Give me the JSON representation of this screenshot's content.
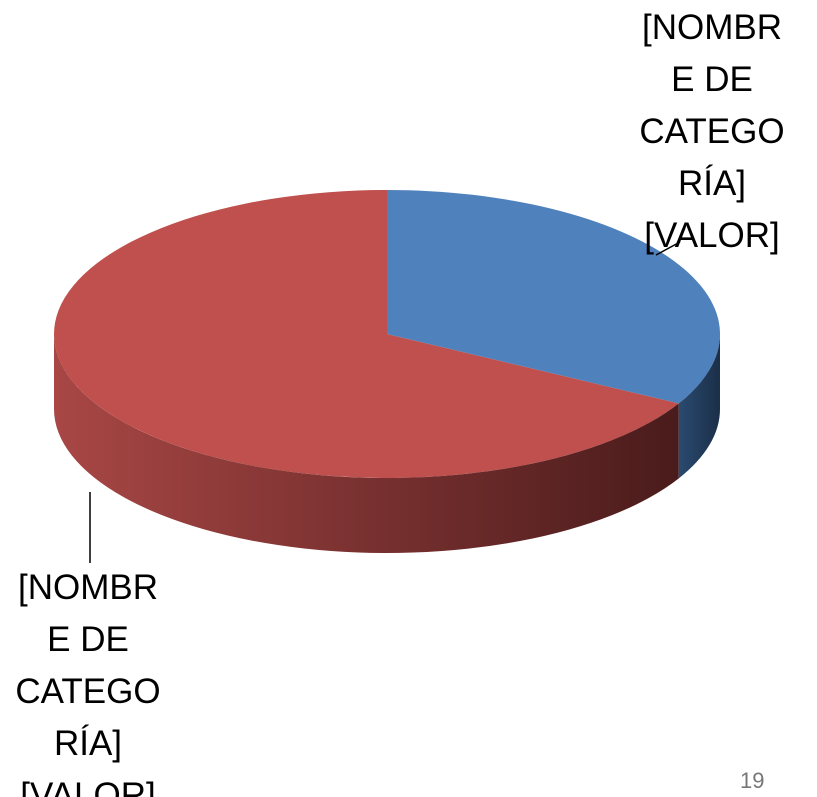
{
  "chart_data": {
    "type": "pie3d",
    "labels": [
      "[NOMBRE DE CATEGORÍA][VALOR]",
      "[NOMBRE DE CATEGORÍA] [VALOR]"
    ],
    "values": [
      33,
      67
    ],
    "colors": [
      "#4f81bd",
      "#c0504d"
    ],
    "side_colors": [
      [
        "#2a4a70",
        "#1b2f48"
      ],
      [
        "#a84745",
        "#4a1b1b"
      ]
    ]
  },
  "page_number": "19"
}
